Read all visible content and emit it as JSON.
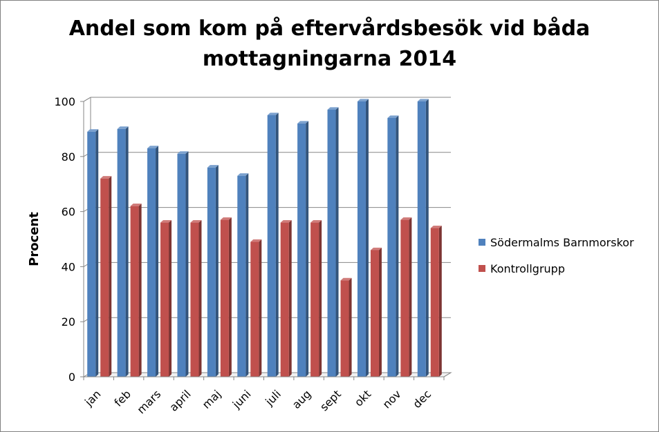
{
  "chart_data": {
    "type": "bar",
    "title_lines": [
      "Andel som kom på eftervårdsbesök vid båda",
      "mottagningarna 2014"
    ],
    "xlabel": "",
    "ylabel": "Procent",
    "ylim": [
      0,
      100
    ],
    "yticks": [
      0,
      20,
      40,
      60,
      80,
      100
    ],
    "grid": true,
    "legend_position": "right",
    "categories": [
      "jan",
      "feb",
      "mars",
      "april",
      "maj",
      "juni",
      "juli",
      "aug",
      "sept",
      "okt",
      "nov",
      "dec"
    ],
    "series": [
      {
        "name": "Södermalms Barnmorskor",
        "color": "#4f81bd",
        "values": [
          89,
          90,
          83,
          81,
          76,
          73,
          95,
          92,
          97,
          100,
          94,
          100
        ]
      },
      {
        "name": "Kontrollgrupp",
        "color": "#c0504d",
        "values": [
          72,
          62,
          56,
          56,
          57,
          49,
          56,
          56,
          35,
          46,
          57,
          54
        ]
      }
    ]
  }
}
